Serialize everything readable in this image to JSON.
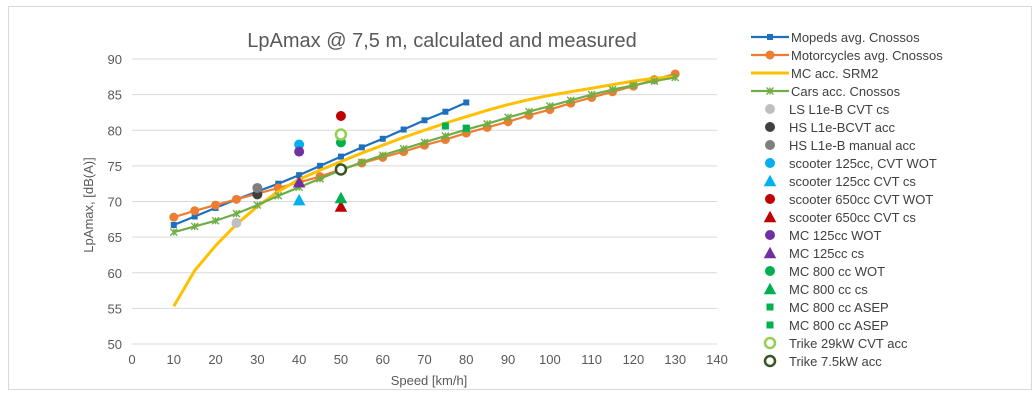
{
  "chart_data": {
    "type": "line",
    "title": "LpAmax @ 7,5 m, calculated and measured",
    "xlabel": "Speed [km/h]",
    "ylabel": "LpAmax, [dB(A)]",
    "xlim": [
      0,
      140
    ],
    "ylim": [
      50,
      90
    ],
    "xticks": [
      0,
      10,
      20,
      30,
      40,
      50,
      60,
      70,
      80,
      90,
      100,
      110,
      120,
      130,
      140
    ],
    "yticks": [
      50,
      55,
      60,
      65,
      70,
      75,
      80,
      85,
      90
    ],
    "grid": "horizontal",
    "legend_position": "right",
    "series": [
      {
        "name": "Mopeds avg. Cnossos",
        "color": "#1f6fbf",
        "marker": "square",
        "line": true,
        "x": [
          10,
          15,
          20,
          25,
          30,
          35,
          40,
          45,
          50,
          55,
          60,
          65,
          70,
          75,
          80
        ],
        "y": [
          66.7,
          67.9,
          69.1,
          70.3,
          71.4,
          72.5,
          73.7,
          75.0,
          76.3,
          77.6,
          78.8,
          80.1,
          81.4,
          82.6,
          83.9
        ]
      },
      {
        "name": "Motorcycles  avg. Cnossos",
        "color": "#ed7d31",
        "marker": "circle",
        "line": true,
        "x": [
          10,
          15,
          20,
          25,
          30,
          35,
          40,
          45,
          50,
          55,
          60,
          65,
          70,
          75,
          80,
          85,
          90,
          95,
          100,
          105,
          110,
          115,
          120,
          125,
          130
        ],
        "y": [
          67.8,
          68.7,
          69.5,
          70.3,
          71.1,
          71.9,
          72.7,
          73.5,
          74.5,
          75.4,
          76.2,
          77.0,
          77.9,
          78.7,
          79.6,
          80.4,
          81.2,
          82.1,
          82.9,
          83.8,
          84.6,
          85.4,
          86.2,
          87.1,
          87.9
        ]
      },
      {
        "name": "MC acc. SRM2",
        "color": "#ffc000",
        "marker": "none",
        "line": true,
        "x": [
          10,
          15,
          20,
          25,
          30,
          35,
          40,
          45,
          50,
          55,
          60,
          65,
          70,
          75,
          80,
          85,
          90,
          95,
          100,
          105,
          110,
          115,
          120,
          125,
          130
        ],
        "y": [
          55.3,
          60.3,
          63.8,
          66.8,
          69.3,
          71.4,
          73.1,
          74.4,
          75.6,
          76.8,
          77.9,
          79.0,
          80.0,
          81.0,
          81.9,
          82.8,
          83.6,
          84.3,
          84.9,
          85.4,
          85.9,
          86.4,
          86.9,
          87.3,
          87.5
        ]
      },
      {
        "name": "Cars acc. Cnossos",
        "color": "#70ad47",
        "marker": "star",
        "line": true,
        "x": [
          10,
          15,
          20,
          25,
          30,
          35,
          40,
          45,
          50,
          55,
          60,
          65,
          70,
          75,
          80,
          85,
          90,
          95,
          100,
          105,
          110,
          115,
          120,
          125,
          130
        ],
        "y": [
          65.7,
          66.5,
          67.3,
          68.3,
          69.5,
          70.8,
          72.0,
          73.2,
          74.4,
          75.5,
          76.5,
          77.4,
          78.3,
          79.2,
          80.1,
          80.9,
          81.8,
          82.6,
          83.4,
          84.2,
          85.0,
          85.7,
          86.3,
          86.9,
          87.4
        ]
      },
      {
        "name": "LS L1e-B CVT cs",
        "color": "#bfbfbf",
        "marker": "circle",
        "line": false,
        "x": [
          25
        ],
        "y": [
          67.0
        ]
      },
      {
        "name": "HS L1e-BCVT acc",
        "color": "#404040",
        "marker": "circle",
        "line": false,
        "x": [
          30
        ],
        "y": [
          71.0
        ]
      },
      {
        "name": "HS L1e-B manual acc",
        "color": "#7f7f7f",
        "marker": "circle",
        "line": false,
        "x": [
          30
        ],
        "y": [
          71.9
        ]
      },
      {
        "name": "scooter 125cc, CVT WOT",
        "color": "#00b0f0",
        "marker": "circle",
        "line": false,
        "x": [
          40
        ],
        "y": [
          78.0
        ]
      },
      {
        "name": "scooter 125cc CVT cs",
        "color": "#00b0f0",
        "marker": "triangle",
        "line": false,
        "x": [
          40
        ],
        "y": [
          70.2
        ]
      },
      {
        "name": "scooter 650cc CVT WOT",
        "color": "#c00000",
        "marker": "circle",
        "line": false,
        "x": [
          50
        ],
        "y": [
          82.0
        ]
      },
      {
        "name": "scooter 650cc CVT cs",
        "color": "#c00000",
        "marker": "triangle",
        "line": false,
        "x": [
          50
        ],
        "y": [
          69.3
        ]
      },
      {
        "name": "MC 125cc WOT",
        "color": "#7030a0",
        "marker": "circle",
        "line": false,
        "x": [
          40
        ],
        "y": [
          77.0
        ]
      },
      {
        "name": "MC 125cc cs",
        "color": "#7030a0",
        "marker": "triangle",
        "line": false,
        "x": [
          40
        ],
        "y": [
          72.7
        ]
      },
      {
        "name": "MC 800 cc WOT",
        "color": "#00b050",
        "marker": "circle",
        "line": false,
        "x": [
          50
        ],
        "y": [
          78.3
        ]
      },
      {
        "name": "MC 800 cc cs",
        "color": "#00b050",
        "marker": "triangle",
        "line": false,
        "x": [
          50
        ],
        "y": [
          70.5
        ]
      },
      {
        "name": "MC 800 cc ASEP",
        "color": "#00b050",
        "marker": "square",
        "line": false,
        "x": [
          75
        ],
        "y": [
          80.6
        ]
      },
      {
        "name": "MC 800 cc ASEP",
        "color": "#00b050",
        "marker": "square",
        "line": false,
        "x": [
          80
        ],
        "y": [
          80.3
        ]
      },
      {
        "name": "Trike 29kW CVT acc",
        "color": "#92d050",
        "marker": "ring",
        "line": false,
        "x": [
          50
        ],
        "y": [
          79.4
        ]
      },
      {
        "name": "Trike 7.5kW acc",
        "color": "#375623",
        "marker": "ring",
        "line": false,
        "x": [
          50
        ],
        "y": [
          74.5
        ]
      }
    ]
  }
}
